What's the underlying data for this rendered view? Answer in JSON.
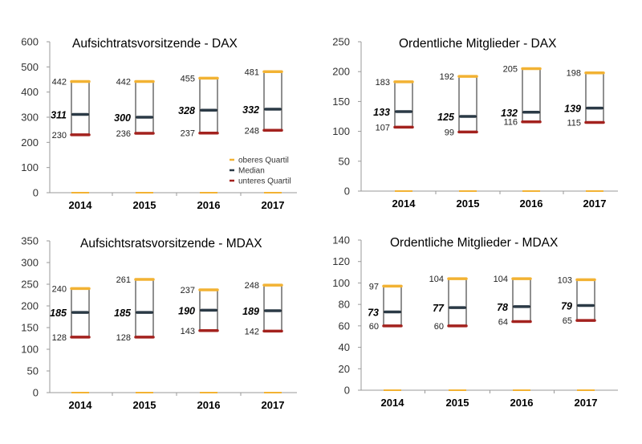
{
  "colors": {
    "upper_quartile": "#f2b233",
    "median": "#2b3a46",
    "lower_quartile": "#a3221e",
    "axis": "#999999",
    "box": "#222222"
  },
  "legend": {
    "items": [
      {
        "label": "oberes Quartil",
        "color": "#f2b233"
      },
      {
        "label": "Median",
        "color": "#2b3a46"
      },
      {
        "label": "unteres Quartil",
        "color": "#a3221e"
      }
    ]
  },
  "chart_data": [
    {
      "type": "box",
      "title": "Aufsichtratsvorsitzende - DAX",
      "categories": [
        "2014",
        "2015",
        "2016",
        "2017"
      ],
      "ylim": [
        0,
        600
      ],
      "yticks": [
        0,
        100,
        200,
        300,
        400,
        500,
        600
      ],
      "upper_quartile": [
        442,
        442,
        455,
        481
      ],
      "median": [
        311,
        300,
        328,
        332
      ],
      "lower_quartile": [
        230,
        236,
        237,
        248
      ]
    },
    {
      "type": "box",
      "title": "Ordentliche Mitglieder - DAX",
      "categories": [
        "2014",
        "2015",
        "2016",
        "2017"
      ],
      "ylim": [
        0,
        250
      ],
      "yticks": [
        0,
        50,
        100,
        150,
        200,
        250
      ],
      "upper_quartile": [
        183,
        192,
        205,
        198
      ],
      "median": [
        133,
        125,
        132,
        139
      ],
      "lower_quartile": [
        107,
        99,
        116,
        115
      ]
    },
    {
      "type": "box",
      "title": "Aufsichtsratsvorsitzende - MDAX",
      "categories": [
        "2014",
        "2015",
        "2016",
        "2017"
      ],
      "ylim": [
        0,
        350
      ],
      "yticks": [
        0,
        50,
        100,
        150,
        200,
        250,
        300,
        350
      ],
      "upper_quartile": [
        240,
        261,
        237,
        248
      ],
      "median": [
        185,
        185,
        190,
        189
      ],
      "lower_quartile": [
        128,
        128,
        143,
        142
      ]
    },
    {
      "type": "box",
      "title": "Ordentliche Mitglieder - MDAX",
      "categories": [
        "2014",
        "2015",
        "2016",
        "2017"
      ],
      "ylim": [
        0,
        140
      ],
      "yticks": [
        0,
        20,
        40,
        60,
        80,
        100,
        120,
        140
      ],
      "upper_quartile": [
        97,
        104,
        104,
        103
      ],
      "median": [
        73,
        77,
        78,
        79
      ],
      "lower_quartile": [
        60,
        60,
        64,
        65
      ]
    }
  ]
}
